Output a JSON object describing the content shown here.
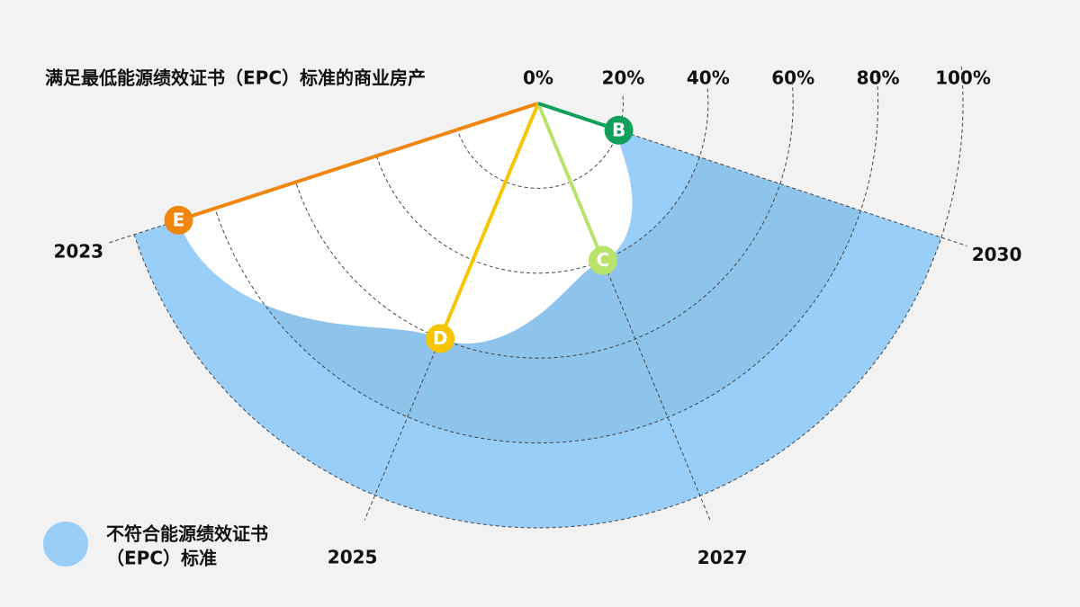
{
  "chart_data": {
    "type": "radial",
    "title": "满足最低能源绩效证书（EPC）标准的商业房产",
    "categories": [
      "2023",
      "2025",
      "2027",
      "2030"
    ],
    "values": [
      89,
      60,
      40,
      20
    ],
    "point_labels": [
      "E",
      "D",
      "C",
      "B"
    ],
    "colors": [
      "#f0860f",
      "#f7c400",
      "#b8e46c",
      "#11a05c"
    ],
    "rlim": [
      0,
      100
    ],
    "rticks": [
      {
        "value": 0,
        "label": "0%"
      },
      {
        "value": 20,
        "label": "20%"
      },
      {
        "value": 40,
        "label": "40%"
      },
      {
        "value": 60,
        "label": "60%"
      },
      {
        "value": 80,
        "label": "80%"
      },
      {
        "value": 100,
        "label": "100%"
      }
    ],
    "fill_color": "#99cef8",
    "band_color": "#8ec3ec",
    "legend": {
      "lines": [
        "不符合能源绩效证书",
        "（EPC）标准"
      ]
    }
  }
}
